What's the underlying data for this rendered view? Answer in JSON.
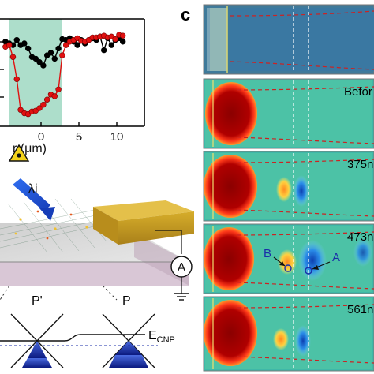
{
  "chart_data": {
    "type": "line",
    "xlabel": "r (μm)",
    "xticks": [
      "0",
      "5",
      "10"
    ],
    "series": [
      {
        "color": "#000000",
        "x": [
          -4.7,
          -4.2,
          -3.7,
          -3.2,
          -2.7,
          -2.2,
          -1.7,
          -1.2,
          -0.7,
          -0.2,
          0.3,
          0.8,
          1.3,
          1.8,
          2.3,
          2.8,
          3.3,
          3.8,
          4.3,
          4.8,
          5.3,
          5.8,
          6.3,
          6.8,
          7.3,
          7.8,
          8.3,
          8.8,
          9.3,
          9.8,
          10.3,
          10.8
        ],
        "y": [
          0.9,
          0.88,
          0.86,
          0.92,
          0.86,
          0.88,
          0.82,
          0.72,
          0.7,
          0.66,
          0.62,
          0.74,
          0.77,
          0.7,
          0.82,
          0.93,
          0.92,
          0.94,
          0.9,
          0.86,
          0.92,
          0.88,
          0.92,
          0.94,
          0.92,
          0.96,
          0.8,
          0.94,
          0.86,
          0.92,
          0.94,
          0.9
        ]
      },
      {
        "color": "#e01010",
        "x": [
          -4.7,
          -4.2,
          -3.7,
          -3.2,
          -2.7,
          -2.2,
          -1.7,
          -1.2,
          -0.7,
          -0.2,
          0.3,
          0.8,
          1.3,
          1.8,
          2.3,
          2.8,
          3.3,
          3.8,
          4.3,
          4.8,
          5.3,
          5.8,
          6.3,
          6.8,
          7.3,
          7.8,
          8.3,
          8.8,
          9.3,
          9.8,
          10.3,
          10.8
        ],
        "y": [
          0.84,
          0.86,
          0.72,
          0.46,
          0.1,
          0.06,
          0.05,
          0.08,
          0.09,
          0.12,
          0.16,
          0.22,
          0.28,
          0.26,
          0.34,
          0.74,
          0.86,
          0.9,
          0.92,
          0.94,
          0.91,
          0.9,
          0.92,
          0.95,
          0.95,
          0.96,
          0.97,
          0.95,
          0.96,
          0.93,
          0.98,
          0.97
        ]
      }
    ]
  },
  "figure": {
    "panel_c_label": "c",
    "laser_label": "λi",
    "meter_label": "A",
    "band_labels": {
      "left": "P'",
      "right": "P",
      "cnp": "E",
      "cnp_sub": "CNP"
    },
    "maps": [
      {
        "label": ""
      },
      {
        "label": "Befor"
      },
      {
        "label": "375n"
      },
      {
        "label": "473n"
      },
      {
        "label": "561n"
      }
    ],
    "markers": {
      "b": "B",
      "a": "A"
    }
  }
}
